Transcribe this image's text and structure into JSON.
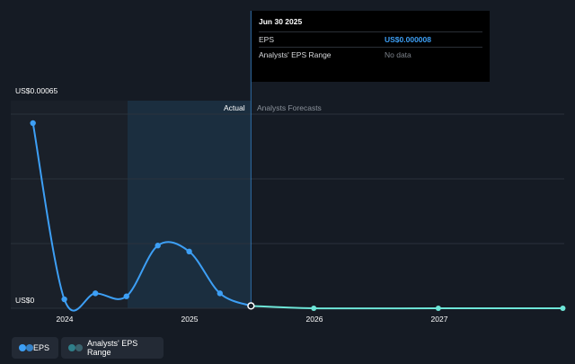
{
  "tooltip": {
    "date": "Jun 30 2025",
    "rows": [
      {
        "label": "EPS",
        "value": "US$0.000008"
      },
      {
        "label": "Analysts' EPS Range",
        "value": "No data"
      }
    ]
  },
  "regions": {
    "actual_label": "Actual",
    "forecast_label": "Analysts Forecasts"
  },
  "legend": {
    "eps_label": "EPS",
    "range_label": "Analysts' EPS Range"
  },
  "colors": {
    "eps": "#3d9ff5",
    "forecast": "#6ee6d8",
    "range": "#2f7f8a",
    "background": "#151b24"
  },
  "chart_data": {
    "type": "line",
    "title": "",
    "xlabel": "",
    "ylabel": "",
    "x_ticks": [
      "2024",
      "2025",
      "2026",
      "2027"
    ],
    "y_tick_labels": [
      "US$0.00065",
      "US$0"
    ],
    "ylim": [
      0,
      0.00065
    ],
    "grid": true,
    "series": [
      {
        "name": "EPS",
        "points": [
          {
            "x": "2023-09-30",
            "y": 0.00062
          },
          {
            "x": "2023-12-31",
            "y": 3e-05
          },
          {
            "x": "2024-03-31",
            "y": 5e-05
          },
          {
            "x": "2024-06-30",
            "y": 4e-05
          },
          {
            "x": "2024-09-30",
            "y": 0.00021
          },
          {
            "x": "2024-12-31",
            "y": 0.00019
          },
          {
            "x": "2025-03-31",
            "y": 5e-05
          },
          {
            "x": "2025-06-30",
            "y": 8e-06
          }
        ]
      },
      {
        "name": "Analysts Forecasts",
        "points": [
          {
            "x": "2025-06-30",
            "y": 8e-06
          },
          {
            "x": "2025-12-31",
            "y": 0.0
          },
          {
            "x": "2026-12-31",
            "y": 0.0
          },
          {
            "x": "2027-12-31",
            "y": 0.0
          }
        ]
      }
    ]
  }
}
